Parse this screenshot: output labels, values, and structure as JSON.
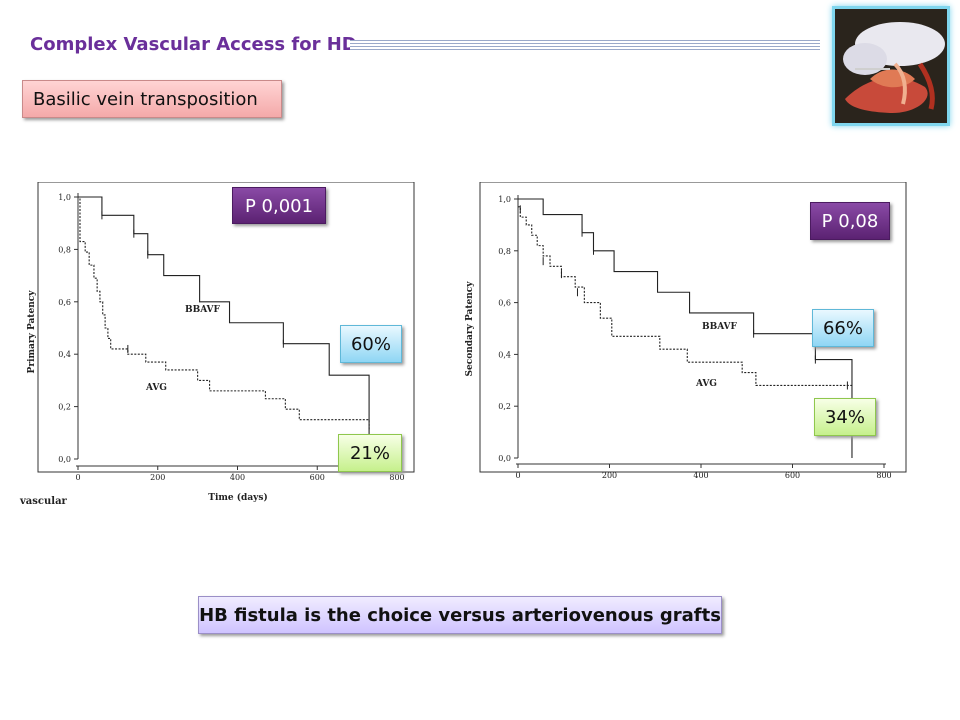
{
  "slide": {
    "title": "Complex Vascular Access for HD",
    "subtitle": "Basilic vein transposition",
    "bottom_text": "HB fistula is the choice versus arteriovenous grafts",
    "crop_fragment": "vascular"
  },
  "annotations": {
    "left_p": "P 0,001",
    "left_bbavf_pct": "60%",
    "left_avg_pct": "21%",
    "right_p": "P 0,08",
    "right_bbavf_pct": "66%",
    "right_avg_pct": "34%"
  },
  "colors": {
    "title": "#6a2f9a",
    "p_box": "#6a2f88",
    "pct_blue": "#9fdcf6",
    "pct_green": "#d4f5a0",
    "subtitle_box": "#f7b7b7",
    "bottom_box": "#ddd4ff"
  },
  "chart_data": [
    {
      "type": "line",
      "title": "",
      "xlabel": "Time (days)",
      "ylabel": "Primary Patency",
      "xlim": [
        0,
        800
      ],
      "ylim": [
        0,
        1
      ],
      "xticks": [
        0,
        200,
        400,
        600,
        800
      ],
      "yticks": [
        "0,0",
        "0,2",
        "0,4",
        "0,6",
        "0,8",
        "1,0"
      ],
      "series": [
        {
          "name": "BBAVF",
          "style": "solid",
          "x": [
            0,
            60,
            140,
            175,
            215,
            305,
            380,
            515,
            630,
            730,
            730
          ],
          "y": [
            1.0,
            0.93,
            0.86,
            0.78,
            0.7,
            0.6,
            0.52,
            0.44,
            0.32,
            0.32,
            0.0
          ]
        },
        {
          "name": "AVG",
          "style": "dashed",
          "x": [
            0,
            5,
            18,
            28,
            40,
            48,
            55,
            62,
            68,
            75,
            82,
            100,
            125,
            170,
            220,
            300,
            330,
            470,
            520,
            555,
            730
          ],
          "y": [
            1.0,
            0.83,
            0.79,
            0.74,
            0.69,
            0.64,
            0.6,
            0.55,
            0.5,
            0.46,
            0.42,
            0.42,
            0.4,
            0.37,
            0.34,
            0.3,
            0.26,
            0.23,
            0.19,
            0.15,
            0.11
          ]
        }
      ],
      "censor_marks": {
        "BBAVF": [
          [
            60,
            0.93
          ],
          [
            140,
            0.86
          ],
          [
            175,
            0.78
          ],
          [
            515,
            0.44
          ]
        ],
        "AVG": [
          [
            125,
            0.42
          ]
        ]
      }
    },
    {
      "type": "line",
      "title": "",
      "xlabel": "",
      "ylabel": "Secondary Patency",
      "xlim": [
        0,
        800
      ],
      "ylim": [
        0,
        1
      ],
      "xticks": [
        0,
        200,
        400,
        600,
        800
      ],
      "yticks": [
        "0,0",
        "0,2",
        "0,4",
        "0,6",
        "0,8",
        "1,0"
      ],
      "series": [
        {
          "name": "BBAVF",
          "style": "solid",
          "x": [
            0,
            55,
            140,
            165,
            210,
            305,
            375,
            515,
            650,
            730,
            730
          ],
          "y": [
            1.0,
            0.94,
            0.87,
            0.8,
            0.72,
            0.64,
            0.56,
            0.48,
            0.38,
            0.38,
            0.0
          ]
        },
        {
          "name": "AVG",
          "style": "dashed",
          "x": [
            0,
            5,
            18,
            30,
            42,
            55,
            70,
            95,
            125,
            145,
            180,
            205,
            310,
            370,
            490,
            520,
            730
          ],
          "y": [
            0.97,
            0.93,
            0.9,
            0.86,
            0.82,
            0.78,
            0.74,
            0.7,
            0.66,
            0.6,
            0.54,
            0.47,
            0.42,
            0.37,
            0.33,
            0.28,
            0.28
          ]
        }
      ],
      "censor_marks": {
        "BBAVF": [
          [
            140,
            0.87
          ],
          [
            165,
            0.8
          ],
          [
            515,
            0.48
          ],
          [
            650,
            0.38
          ]
        ],
        "AVG": [
          [
            5,
            0.96
          ],
          [
            55,
            0.76
          ],
          [
            95,
            0.71
          ],
          [
            130,
            0.64
          ],
          [
            720,
            0.28
          ]
        ]
      }
    }
  ]
}
